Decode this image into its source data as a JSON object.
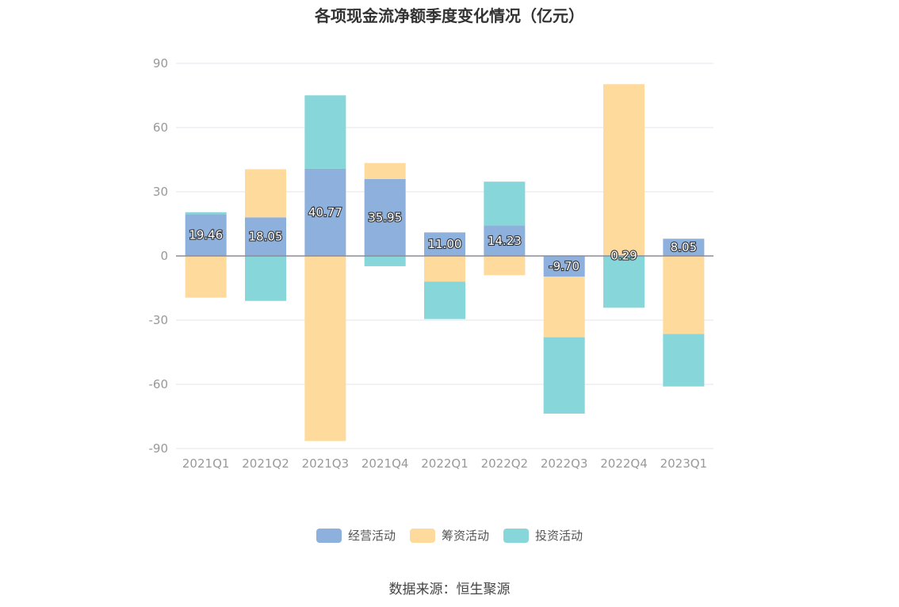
{
  "title": "各项现金流净额季度变化情况（亿元）",
  "source": "数据来源：恒生聚源",
  "chart_data": {
    "type": "bar",
    "stacked": true,
    "title": "各项现金流净额季度变化情况（亿元）",
    "categories": [
      "2021Q1",
      "2021Q2",
      "2021Q3",
      "2021Q4",
      "2022Q1",
      "2022Q2",
      "2022Q3",
      "2022Q4",
      "2023Q1"
    ],
    "ylim": [
      -90,
      90
    ],
    "yticks": [
      90,
      60,
      30,
      0,
      -30,
      -60,
      -90
    ],
    "grid": true,
    "legend_position": "bottom",
    "series": [
      {
        "name": "经营活动",
        "color": "#8eb0dc",
        "values": [
          19.46,
          18.05,
          40.77,
          35.95,
          11.0,
          14.23,
          -9.7,
          0.29,
          8.05
        ],
        "labels": [
          "19.46",
          "18.05",
          "40.77",
          "35.95",
          "11.00",
          "14.23",
          "-9.70",
          "0.29",
          "8.05"
        ]
      },
      {
        "name": "筹资活动",
        "color": "#fedb9c",
        "values": [
          -19.5,
          22.5,
          -86.5,
          7.5,
          -12.0,
          -9.0,
          -28.3,
          80.0,
          -36.5
        ]
      },
      {
        "name": "投资活动",
        "color": "#87d6da",
        "values": [
          1.0,
          -21.0,
          34.3,
          -4.8,
          -17.5,
          20.5,
          -35.7,
          -24.2,
          -24.5
        ]
      }
    ]
  }
}
